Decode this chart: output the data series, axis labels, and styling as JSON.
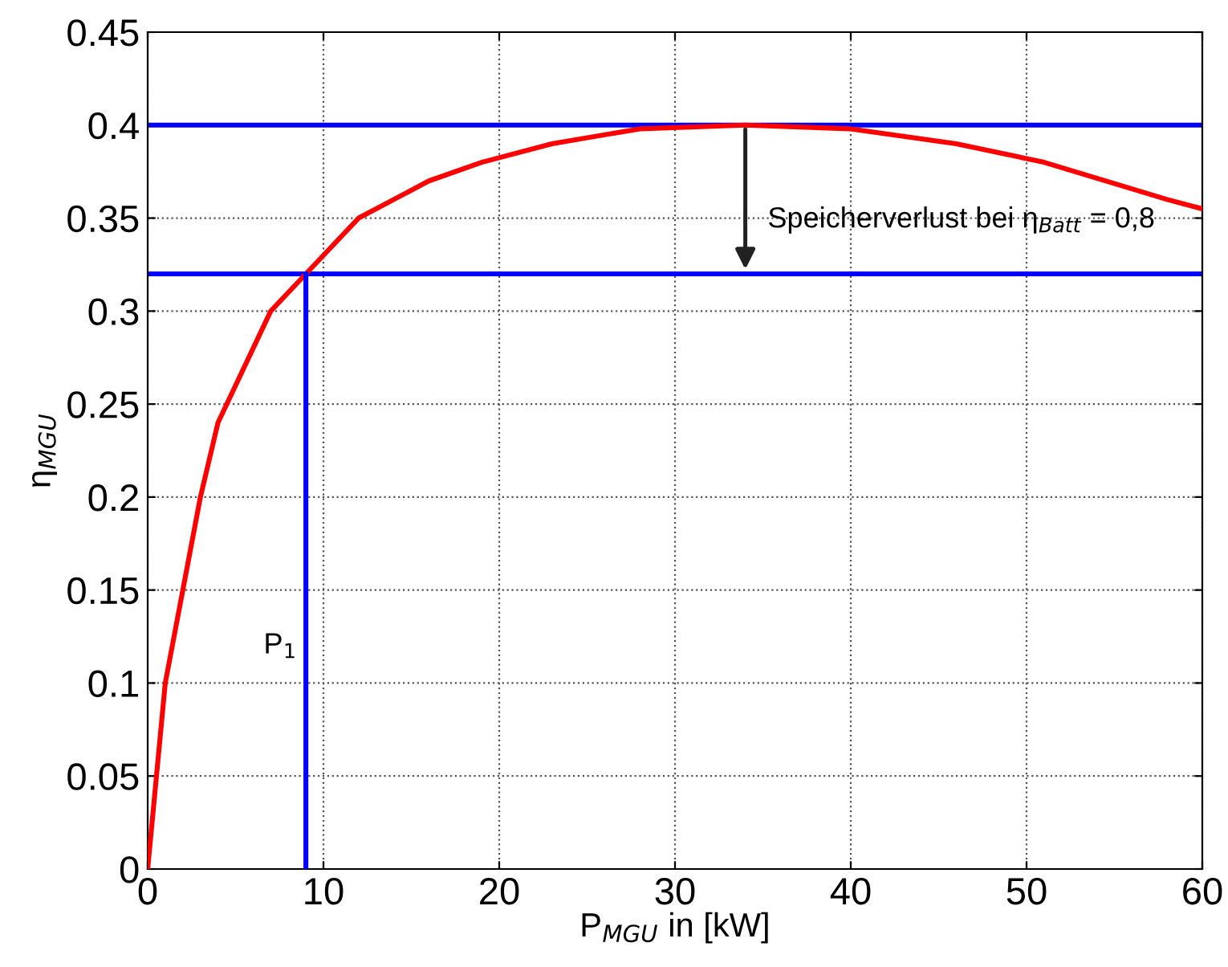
{
  "chart_data": {
    "type": "line",
    "xlabel": "P$_{MGU}$ in [kW]",
    "ylabel": "η$_{MGU}$",
    "series": [
      {
        "color": "#ff0000",
        "x": [
          0,
          1,
          3,
          4,
          7,
          9,
          12,
          16,
          19,
          23,
          28,
          34,
          40,
          46,
          51,
          58,
          60
        ],
        "values": [
          0,
          0.1,
          0.2,
          0.24,
          0.3,
          0.32,
          0.35,
          0.37,
          0.38,
          0.39,
          0.398,
          0.4,
          0.398,
          0.39,
          0.38,
          0.36,
          0.355
        ]
      },
      {
        "color": "#0000ff",
        "x": [
          9,
          9
        ],
        "values": [
          0,
          0.32
        ]
      }
    ],
    "ref_lines": [
      {
        "axis": "y",
        "value": 0.4,
        "color": "#0000ff"
      },
      {
        "axis": "y",
        "value": 0.32,
        "color": "#0000ff"
      }
    ],
    "annotations": [
      {
        "text": "Speicherverlust bei η$_{Batt}$ = 0,8",
        "x": 34,
        "y": 0.32
      },
      {
        "text": "P$_{1}$",
        "x": 9,
        "y": 0.12
      }
    ],
    "xlim": [
      0,
      60
    ],
    "ylim": [
      0,
      0.45
    ],
    "xticks": [
      0,
      10,
      20,
      30,
      40,
      50,
      60
    ],
    "yticks": [
      0,
      0.05,
      0.1,
      0.15,
      0.2,
      0.25,
      0.3,
      0.35,
      0.4,
      0.45
    ],
    "grid": true,
    "line_style": "solid",
    "marker": "none"
  }
}
